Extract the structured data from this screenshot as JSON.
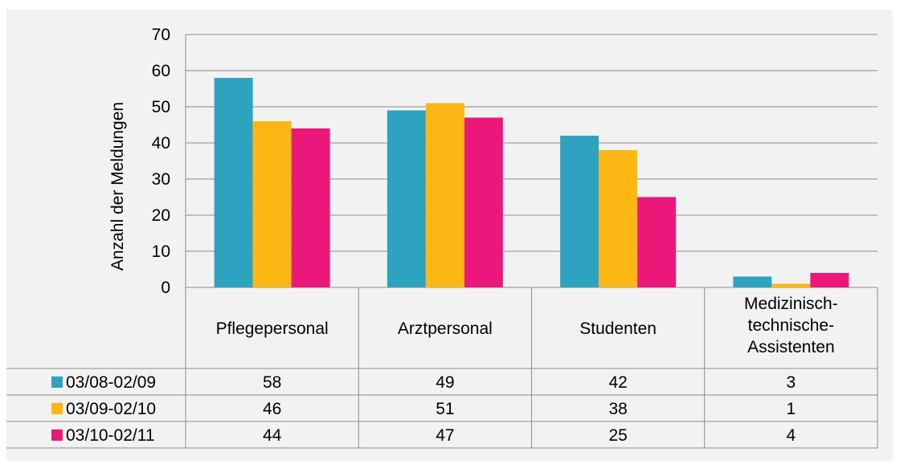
{
  "chart_data": {
    "type": "bar",
    "title": "",
    "xlabel": "",
    "ylabel": "Anzahl der Meldungen",
    "ylim": [
      0,
      70
    ],
    "yticks": [
      0,
      10,
      20,
      30,
      40,
      50,
      60,
      70
    ],
    "grid": true,
    "legend": "data-table-left",
    "categories": [
      [
        "Pflegepersonal"
      ],
      [
        "Arztpersonal"
      ],
      [
        "Studenten"
      ],
      [
        "Medizinisch-",
        "technische-",
        "Assistenten"
      ]
    ],
    "series": [
      {
        "name": "03/08-02/09",
        "color": "#2ea3bf",
        "values": [
          58,
          49,
          42,
          3
        ]
      },
      {
        "name": "03/09-02/10",
        "color": "#fdb714",
        "values": [
          46,
          51,
          38,
          1
        ]
      },
      {
        "name": "03/10-02/11",
        "color": "#ec1879",
        "values": [
          44,
          47,
          25,
          4
        ]
      }
    ]
  }
}
